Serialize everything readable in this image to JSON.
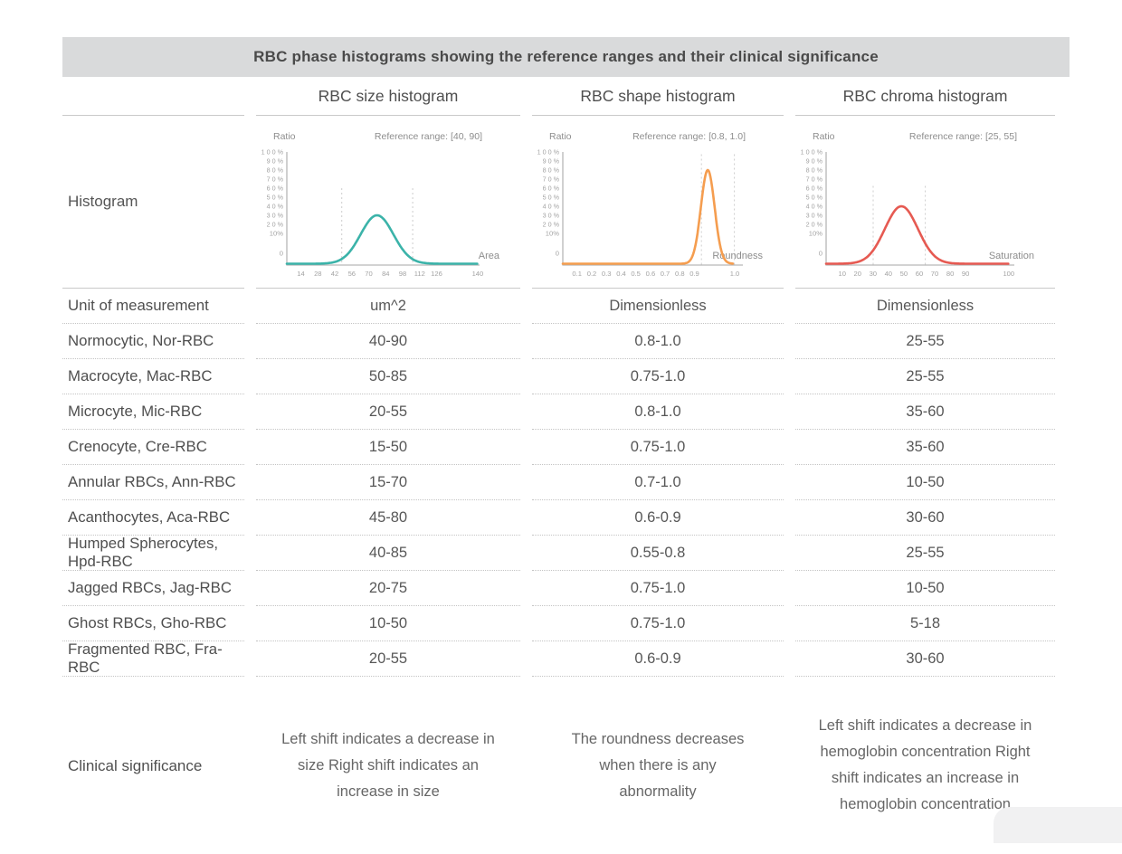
{
  "title": "RBC phase histograms showing the reference ranges and their clinical significance",
  "columns": {
    "size": "RBC size histogram",
    "shape": "RBC shape histogram",
    "chroma": "RBC chroma histogram"
  },
  "row_headers": {
    "histogram": "Histogram",
    "clinical": "Clinical significance"
  },
  "rows": [
    {
      "label": "Unit of measurement",
      "size": "um^2",
      "shape": "Dimensionless",
      "chroma": "Dimensionless"
    },
    {
      "label": "Normocytic, Nor-RBC",
      "size": "40-90",
      "shape": "0.8-1.0",
      "chroma": "25-55"
    },
    {
      "label": "Macrocyte, Mac-RBC",
      "size": "50-85",
      "shape": "0.75-1.0",
      "chroma": "25-55"
    },
    {
      "label": "Microcyte, Mic-RBC",
      "size": "20-55",
      "shape": "0.8-1.0",
      "chroma": "35-60"
    },
    {
      "label": "Crenocyte, Cre-RBC",
      "size": "15-50",
      "shape": "0.75-1.0",
      "chroma": "35-60"
    },
    {
      "label": "Annular RBCs, Ann-RBC",
      "size": "15-70",
      "shape": "0.7-1.0",
      "chroma": "10-50"
    },
    {
      "label": "Acanthocytes, Aca-RBC",
      "size": "45-80",
      "shape": "0.6-0.9",
      "chroma": "30-60"
    },
    {
      "label": "Humped Spherocytes, Hpd-RBC",
      "size": "40-85",
      "shape": "0.55-0.8",
      "chroma": "25-55"
    },
    {
      "label": "Jagged RBCs, Jag-RBC",
      "size": "20-75",
      "shape": "0.75-1.0",
      "chroma": "10-50"
    },
    {
      "label": "Ghost RBCs, Gho-RBC",
      "size": "10-50",
      "shape": "0.75-1.0",
      "chroma": "5-18"
    },
    {
      "label": "Fragmented RBC, Fra-RBC",
      "size": "20-55",
      "shape": "0.6-0.9",
      "chroma": "30-60"
    }
  ],
  "clinical": {
    "size": "Left shift indicates a decrease in size Right shift indicates an increase in size",
    "shape": "The roundness decreases when there is any abnormality",
    "chroma": "Left shift indicates a decrease in hemoglobin concentration Right shift indicates an increase in hemoglobin concentration"
  },
  "chart_data": [
    {
      "type": "line",
      "title": "RBC size histogram",
      "ylabel": "Ratio",
      "xlabel": "Area",
      "reference_range_label": "Reference range: [40, 90]",
      "reference_range": [
        40,
        90
      ],
      "y_ticks": [
        "1 0 0 %",
        "9 0 %",
        "8 0 %",
        "7 0 %",
        "6 0 %",
        "5 0 %",
        "4 0 %",
        "3 0 %",
        "2 0 %",
        "10%",
        "0"
      ],
      "x_ticks": [
        {
          "label": "14",
          "f": 0.073
        },
        {
          "label": "28",
          "f": 0.161
        },
        {
          "label": "42",
          "f": 0.249
        },
        {
          "label": "56",
          "f": 0.337
        },
        {
          "label": "70",
          "f": 0.425
        },
        {
          "label": "84",
          "f": 0.513
        },
        {
          "label": "98",
          "f": 0.601
        },
        {
          "label": "112",
          "f": 0.689
        },
        {
          "label": "126",
          "f": 0.777
        },
        {
          "label": "140",
          "f": 0.99
        }
      ],
      "peak_x": 77,
      "peak_ratio_pct": 30,
      "color": "#3bb3a9",
      "layout": {
        "mu_f": 0.468,
        "sigma_f": 0.085,
        "curve_end_f": 0.99,
        "dashed_f": [
          0.285,
          0.653
        ],
        "dash_top_f": 0.32
      }
    },
    {
      "type": "line",
      "title": "RBC shape histogram",
      "ylabel": "Ratio",
      "xlabel": "Roundness",
      "reference_range_label": "Reference range: [0.8, 1.0]",
      "reference_range": [
        0.8,
        1.0
      ],
      "y_ticks": [
        "1 0 0 %",
        "9 0 %",
        "8 0 %",
        "7 0 %",
        "6 0 %",
        "5 0 %",
        "4 0 %",
        "3 0 %",
        "2 0 %",
        "10%",
        "0"
      ],
      "x_ticks": [
        {
          "label": "0.1",
          "f": 0.079
        },
        {
          "label": "0.2",
          "f": 0.161
        },
        {
          "label": "0.3",
          "f": 0.242
        },
        {
          "label": "0.4",
          "f": 0.324
        },
        {
          "label": "0.5",
          "f": 0.405
        },
        {
          "label": "0.6",
          "f": 0.487
        },
        {
          "label": "0.7",
          "f": 0.568
        },
        {
          "label": "0.8",
          "f": 0.65
        },
        {
          "label": "0.9",
          "f": 0.731
        },
        {
          "label": "1.0",
          "f": 0.955
        }
      ],
      "peak_x": 0.95,
      "peak_ratio_pct": 80,
      "color": "#f59d4f",
      "layout": {
        "mu_f": 0.805,
        "sigma_f": 0.038,
        "curve_end_f": 0.945,
        "dashed_f": [
          0.77,
          0.953
        ],
        "dash_top_f": 0.02
      }
    },
    {
      "type": "line",
      "title": "RBC chroma histogram",
      "ylabel": "Ratio",
      "xlabel": "Saturation",
      "reference_range_label": "Reference range: [25, 55]",
      "reference_range": [
        25,
        55
      ],
      "y_ticks": [
        "1 0 0 %",
        "9 0 %",
        "8 0 %",
        "7 0 %",
        "6 0 %",
        "5 0 %",
        "4 0 %",
        "3 0 %",
        "2 0 %",
        "10%",
        "0"
      ],
      "x_ticks": [
        {
          "label": "10",
          "f": 0.085
        },
        {
          "label": "20",
          "f": 0.167
        },
        {
          "label": "30",
          "f": 0.249
        },
        {
          "label": "40",
          "f": 0.331
        },
        {
          "label": "50",
          "f": 0.413
        },
        {
          "label": "60",
          "f": 0.495
        },
        {
          "label": "70",
          "f": 0.577
        },
        {
          "label": "80",
          "f": 0.659
        },
        {
          "label": "90",
          "f": 0.741
        },
        {
          "label": "100",
          "f": 0.97
        }
      ],
      "peak_x": 48,
      "peak_ratio_pct": 40,
      "color": "#e65a52",
      "layout": {
        "mu_f": 0.4,
        "sigma_f": 0.088,
        "curve_end_f": 0.97,
        "dashed_f": [
          0.25,
          0.527
        ],
        "dash_top_f": 0.3
      }
    }
  ],
  "colors": {
    "title_bar_bg": "#d9dadb",
    "solid_line": "#c9c9c9",
    "dotted_line": "#c4c4c4",
    "axis": "#b6b6b6",
    "dashed_ref": "#cdcdcd",
    "chart_text": "#8d8d8d",
    "tick_text": "#a3a3a3"
  }
}
